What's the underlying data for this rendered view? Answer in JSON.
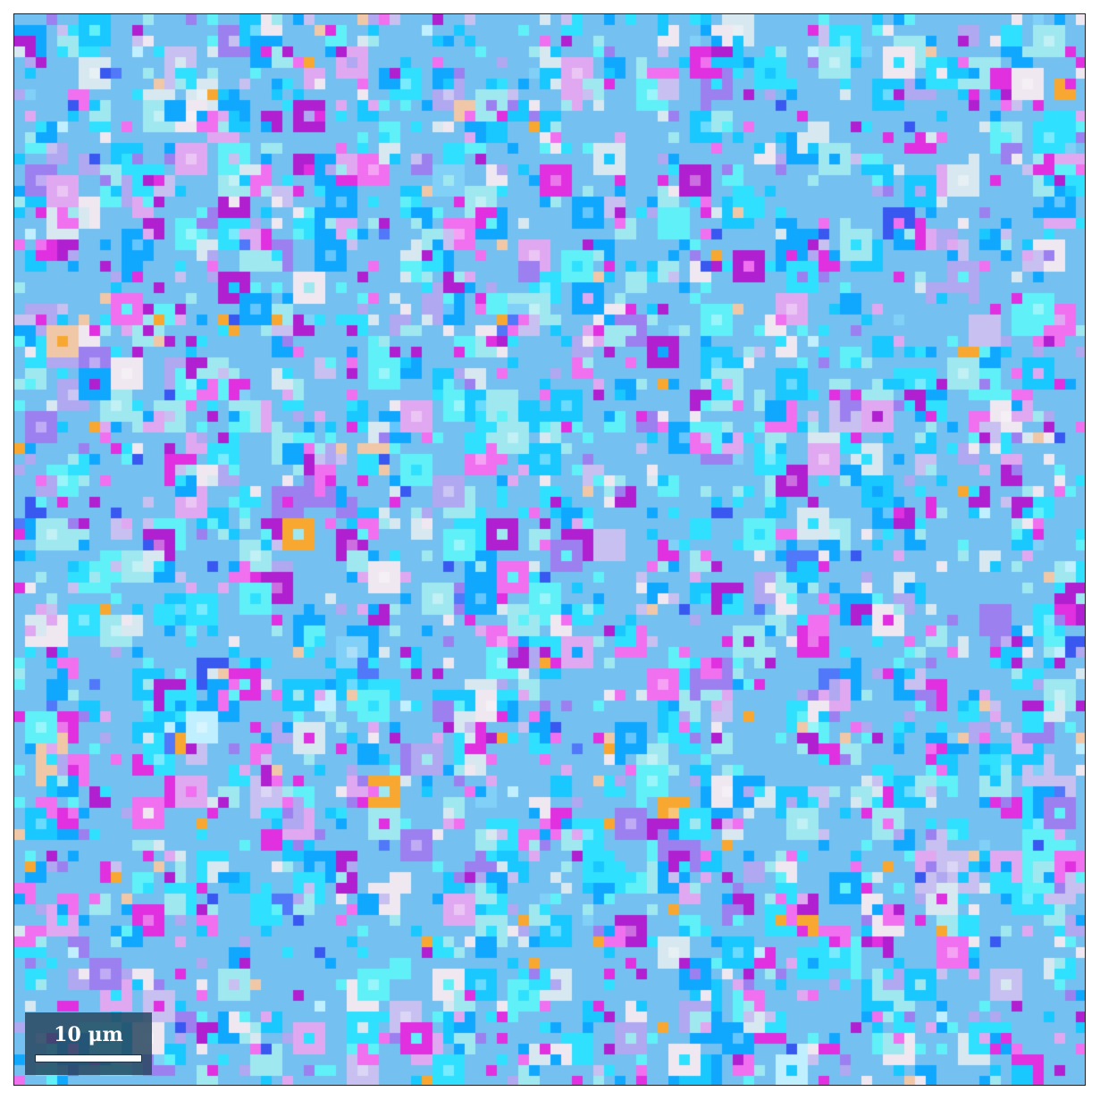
{
  "figure": {
    "scale_bar": {
      "label": "10 μm"
    },
    "colors": {
      "background": "#74c0f0",
      "palette": [
        "#18c8ff",
        "#10a8ff",
        "#30e0ff",
        "#60f0f8",
        "#a0e8f0",
        "#b0a8f0",
        "#9c80f0",
        "#c8c0f0",
        "#e0a8f0",
        "#f070f0",
        "#e030e0",
        "#b020d0",
        "#d8e8f0",
        "#f0e8f0",
        "#5078f8",
        "#3858f0",
        "#80d0f8",
        "#c0f0ff",
        "#f0c8a8",
        "#f8a830"
      ]
    }
  }
}
